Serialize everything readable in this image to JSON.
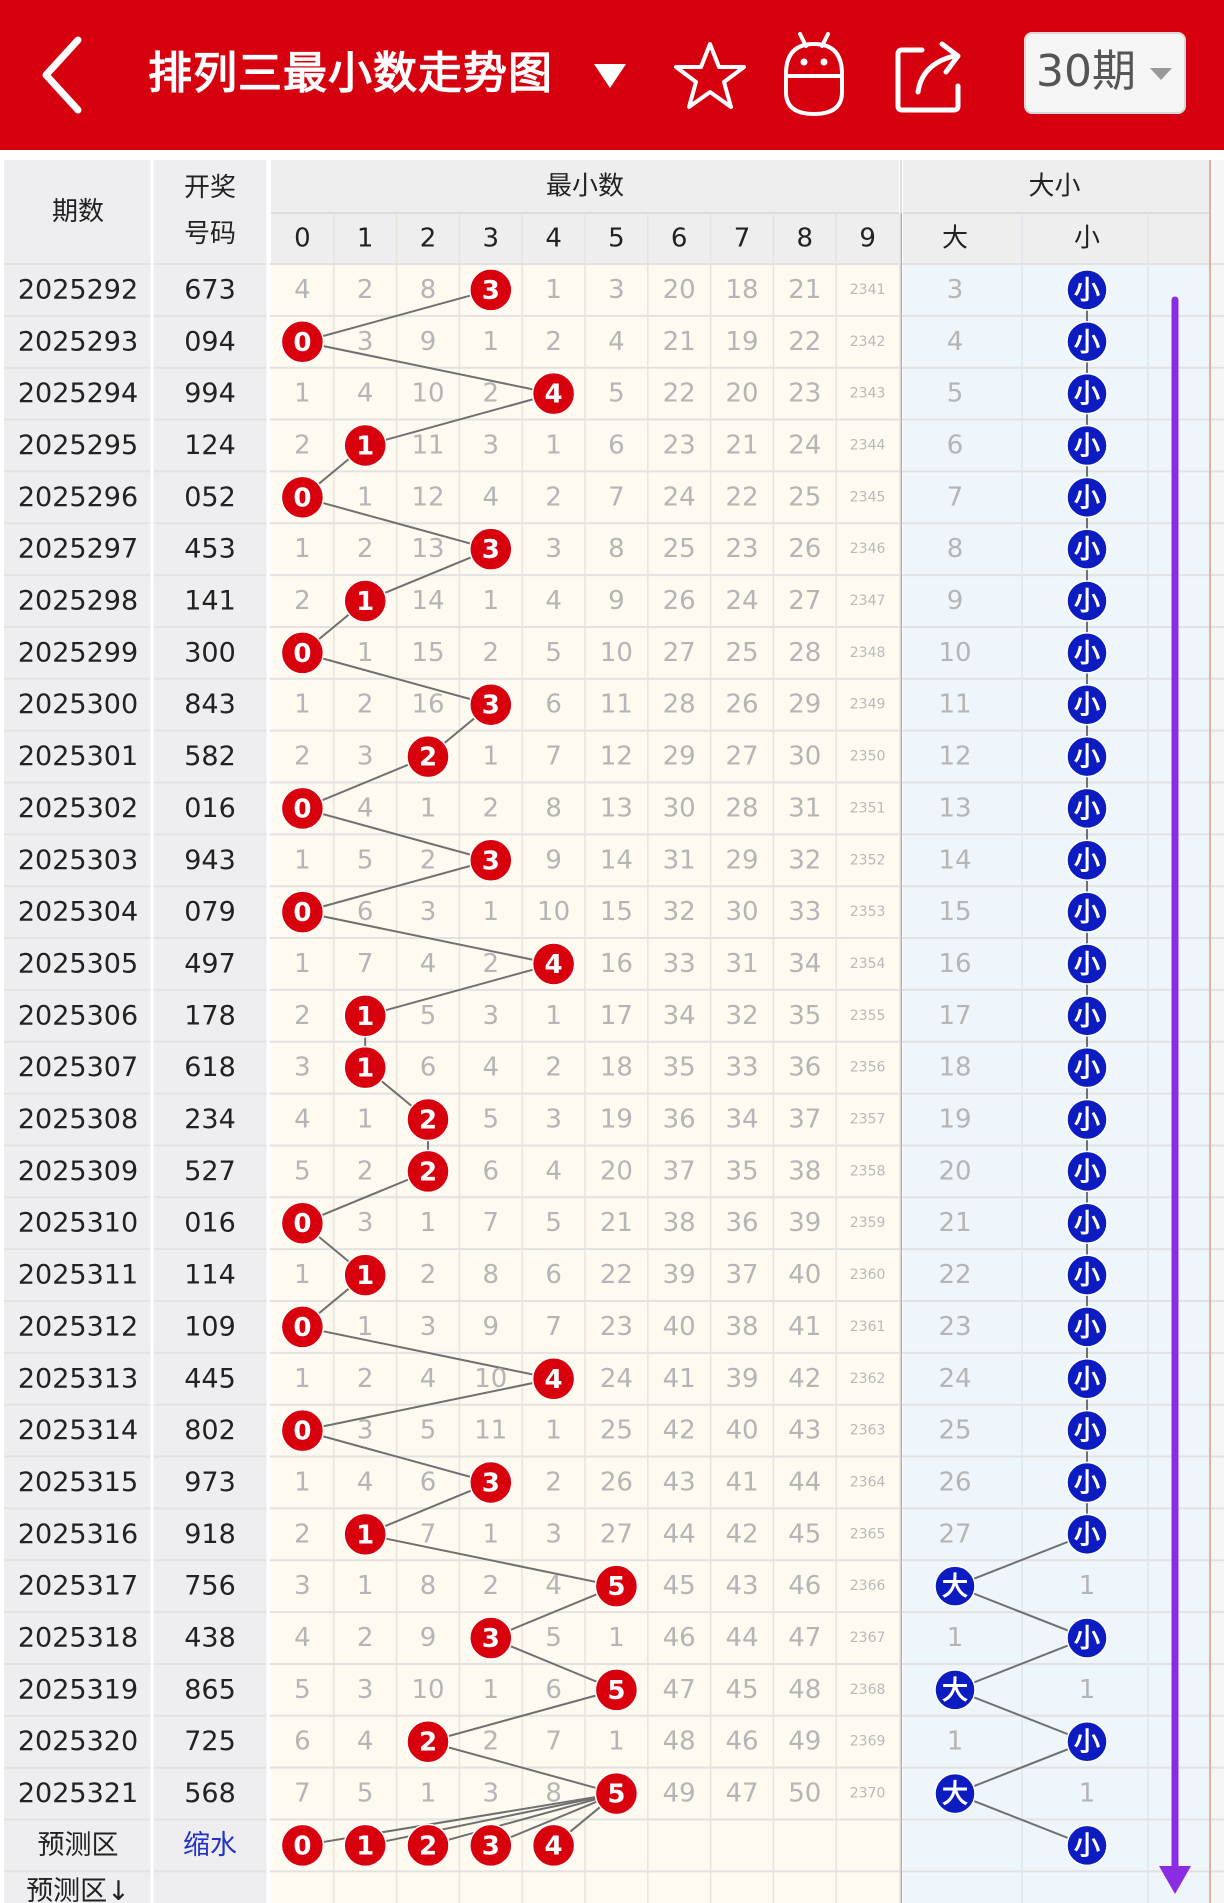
{
  "header": {
    "title": "排列三最小数走势图",
    "period_select": "30期",
    "colors": {
      "bar": "#d6000f",
      "ball_red": "#d8000c",
      "ball_blue": "#0d1cc0",
      "arrow": "#8b2be2"
    }
  },
  "table": {
    "col_period": "期数",
    "col_numbers_l1": "开奖",
    "col_numbers_l2": "号码",
    "group_min": "最小数",
    "group_size": "大小",
    "digits": [
      "0",
      "1",
      "2",
      "3",
      "4",
      "5",
      "6",
      "7",
      "8",
      "9"
    ],
    "big_label": "大",
    "small_label": "小",
    "rows": [
      {
        "period": "2025292",
        "code": "673",
        "min": 3,
        "miss": [
          "4",
          "2",
          "8",
          "",
          "1",
          "3",
          "20",
          "18",
          "21",
          "2341"
        ],
        "size": "小",
        "other": "3"
      },
      {
        "period": "2025293",
        "code": "094",
        "min": 0,
        "miss": [
          "",
          "3",
          "9",
          "1",
          "2",
          "4",
          "21",
          "19",
          "22",
          "2342"
        ],
        "size": "小",
        "other": "4"
      },
      {
        "period": "2025294",
        "code": "994",
        "min": 4,
        "miss": [
          "1",
          "4",
          "10",
          "2",
          "",
          "5",
          "22",
          "20",
          "23",
          "2343"
        ],
        "size": "小",
        "other": "5"
      },
      {
        "period": "2025295",
        "code": "124",
        "min": 1,
        "miss": [
          "2",
          "",
          "11",
          "3",
          "1",
          "6",
          "23",
          "21",
          "24",
          "2344"
        ],
        "size": "小",
        "other": "6"
      },
      {
        "period": "2025296",
        "code": "052",
        "min": 0,
        "miss": [
          "",
          "1",
          "12",
          "4",
          "2",
          "7",
          "24",
          "22",
          "25",
          "2345"
        ],
        "size": "小",
        "other": "7"
      },
      {
        "period": "2025297",
        "code": "453",
        "min": 3,
        "miss": [
          "1",
          "2",
          "13",
          "",
          "3",
          "8",
          "25",
          "23",
          "26",
          "2346"
        ],
        "size": "小",
        "other": "8"
      },
      {
        "period": "2025298",
        "code": "141",
        "min": 1,
        "miss": [
          "2",
          "",
          "14",
          "1",
          "4",
          "9",
          "26",
          "24",
          "27",
          "2347"
        ],
        "size": "小",
        "other": "9"
      },
      {
        "period": "2025299",
        "code": "300",
        "min": 0,
        "miss": [
          "",
          "1",
          "15",
          "2",
          "5",
          "10",
          "27",
          "25",
          "28",
          "2348"
        ],
        "size": "小",
        "other": "10"
      },
      {
        "period": "2025300",
        "code": "843",
        "min": 3,
        "miss": [
          "1",
          "2",
          "16",
          "",
          "6",
          "11",
          "28",
          "26",
          "29",
          "2349"
        ],
        "size": "小",
        "other": "11"
      },
      {
        "period": "2025301",
        "code": "582",
        "min": 2,
        "miss": [
          "2",
          "3",
          "",
          "1",
          "7",
          "12",
          "29",
          "27",
          "30",
          "2350"
        ],
        "size": "小",
        "other": "12"
      },
      {
        "period": "2025302",
        "code": "016",
        "min": 0,
        "miss": [
          "",
          "4",
          "1",
          "2",
          "8",
          "13",
          "30",
          "28",
          "31",
          "2351"
        ],
        "size": "小",
        "other": "13"
      },
      {
        "period": "2025303",
        "code": "943",
        "min": 3,
        "miss": [
          "1",
          "5",
          "2",
          "",
          "9",
          "14",
          "31",
          "29",
          "32",
          "2352"
        ],
        "size": "小",
        "other": "14"
      },
      {
        "period": "2025304",
        "code": "079",
        "min": 0,
        "miss": [
          "",
          "6",
          "3",
          "1",
          "10",
          "15",
          "32",
          "30",
          "33",
          "2353"
        ],
        "size": "小",
        "other": "15"
      },
      {
        "period": "2025305",
        "code": "497",
        "min": 4,
        "miss": [
          "1",
          "7",
          "4",
          "2",
          "",
          "16",
          "33",
          "31",
          "34",
          "2354"
        ],
        "size": "小",
        "other": "16"
      },
      {
        "period": "2025306",
        "code": "178",
        "min": 1,
        "miss": [
          "2",
          "",
          "5",
          "3",
          "1",
          "17",
          "34",
          "32",
          "35",
          "2355"
        ],
        "size": "小",
        "other": "17"
      },
      {
        "period": "2025307",
        "code": "618",
        "min": 1,
        "miss": [
          "3",
          "",
          "6",
          "4",
          "2",
          "18",
          "35",
          "33",
          "36",
          "2356"
        ],
        "size": "小",
        "other": "18"
      },
      {
        "period": "2025308",
        "code": "234",
        "min": 2,
        "miss": [
          "4",
          "1",
          "",
          "5",
          "3",
          "19",
          "36",
          "34",
          "37",
          "2357"
        ],
        "size": "小",
        "other": "19"
      },
      {
        "period": "2025309",
        "code": "527",
        "min": 2,
        "miss": [
          "5",
          "2",
          "",
          "6",
          "4",
          "20",
          "37",
          "35",
          "38",
          "2358"
        ],
        "size": "小",
        "other": "20"
      },
      {
        "period": "2025310",
        "code": "016",
        "min": 0,
        "miss": [
          "",
          "3",
          "1",
          "7",
          "5",
          "21",
          "38",
          "36",
          "39",
          "2359"
        ],
        "size": "小",
        "other": "21"
      },
      {
        "period": "2025311",
        "code": "114",
        "min": 1,
        "miss": [
          "1",
          "",
          "2",
          "8",
          "6",
          "22",
          "39",
          "37",
          "40",
          "2360"
        ],
        "size": "小",
        "other": "22"
      },
      {
        "period": "2025312",
        "code": "109",
        "min": 0,
        "miss": [
          "",
          "1",
          "3",
          "9",
          "7",
          "23",
          "40",
          "38",
          "41",
          "2361"
        ],
        "size": "小",
        "other": "23"
      },
      {
        "period": "2025313",
        "code": "445",
        "min": 4,
        "miss": [
          "1",
          "2",
          "4",
          "10",
          "",
          "24",
          "41",
          "39",
          "42",
          "2362"
        ],
        "size": "小",
        "other": "24"
      },
      {
        "period": "2025314",
        "code": "802",
        "min": 0,
        "miss": [
          "",
          "3",
          "5",
          "11",
          "1",
          "25",
          "42",
          "40",
          "43",
          "2363"
        ],
        "size": "小",
        "other": "25"
      },
      {
        "period": "2025315",
        "code": "973",
        "min": 3,
        "miss": [
          "1",
          "4",
          "6",
          "",
          "2",
          "26",
          "43",
          "41",
          "44",
          "2364"
        ],
        "size": "小",
        "other": "26"
      },
      {
        "period": "2025316",
        "code": "918",
        "min": 1,
        "miss": [
          "2",
          "",
          "7",
          "1",
          "3",
          "27",
          "44",
          "42",
          "45",
          "2365"
        ],
        "size": "小",
        "other": "27"
      },
      {
        "period": "2025317",
        "code": "756",
        "min": 5,
        "miss": [
          "3",
          "1",
          "8",
          "2",
          "4",
          "",
          "45",
          "43",
          "46",
          "2366"
        ],
        "size": "大",
        "other": "1"
      },
      {
        "period": "2025318",
        "code": "438",
        "min": 3,
        "miss": [
          "4",
          "2",
          "9",
          "",
          "5",
          "1",
          "46",
          "44",
          "47",
          "2367"
        ],
        "size": "小",
        "other": "1"
      },
      {
        "period": "2025319",
        "code": "865",
        "min": 5,
        "miss": [
          "5",
          "3",
          "10",
          "1",
          "6",
          "",
          "47",
          "45",
          "48",
          "2368"
        ],
        "size": "大",
        "other": "1"
      },
      {
        "period": "2025320",
        "code": "725",
        "min": 2,
        "miss": [
          "6",
          "4",
          "",
          "2",
          "7",
          "1",
          "48",
          "46",
          "49",
          "2369"
        ],
        "size": "小",
        "other": "1"
      },
      {
        "period": "2025321",
        "code": "568",
        "min": 5,
        "miss": [
          "7",
          "5",
          "1",
          "3",
          "8",
          "",
          "49",
          "47",
          "50",
          "2370"
        ],
        "size": "大",
        "other": "1"
      }
    ],
    "predict": {
      "label": "预测区",
      "link": "缩水",
      "balls": [
        "0",
        "1",
        "2",
        "3",
        "4"
      ],
      "size": "小",
      "next_label": "预测区↓"
    }
  }
}
